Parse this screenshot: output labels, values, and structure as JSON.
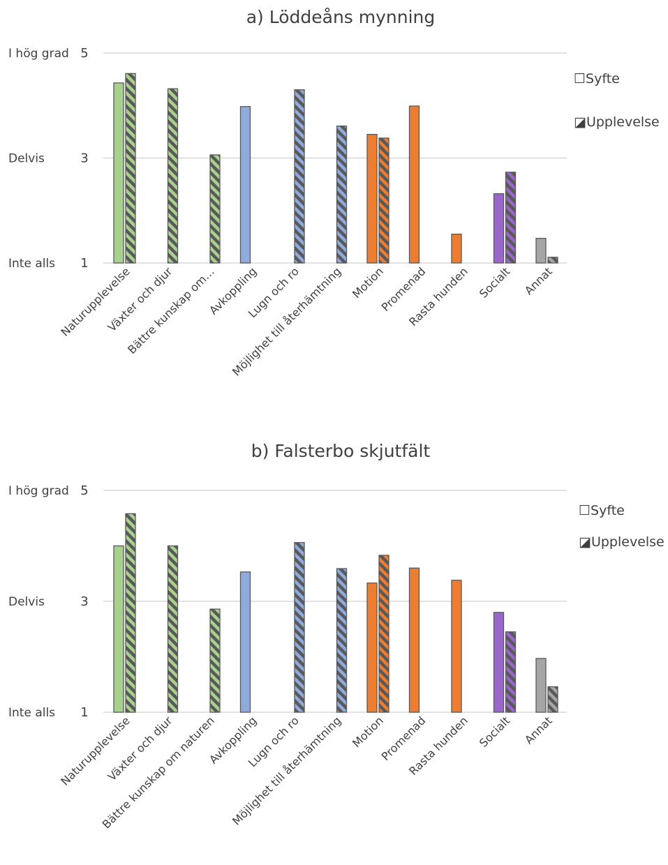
{
  "charts": [
    {
      "title": "a) Löddeåns mynning",
      "categories": [
        "Naturupplevelse",
        "Växter och djur",
        "Bättre kunskap om…",
        "Avkoppling",
        "Lugn och ro",
        "Möjlighet till återhämtning",
        "Motion",
        "Promenad",
        "Rasta hunden",
        "Socialt",
        "Annat"
      ]
    },
    {
      "title": "b) Falsterbo skjutfält",
      "categories": [
        "Naturupplevelse",
        "Växter och djur",
        "Bättre kunskap om naturen",
        "Avkoppling",
        "Lugn och ro",
        "Möjlighet till återhämtning",
        "Motion",
        "Promenad",
        "Rasta hunden",
        "Socialt",
        "Annat"
      ]
    }
  ],
  "y_axis": {
    "ticks": [
      "1",
      "3",
      "5"
    ],
    "labels": {
      "low": "Inte alls",
      "mid": "Delvis",
      "high": "I hög grad"
    }
  },
  "legend": {
    "syfte": "Syfte",
    "upplevelse": "Upplevelse",
    "syfte_symbol": "☐",
    "upplevelse_symbol": "◪"
  },
  "colors": {
    "nature": "#a9d18e",
    "calm": "#8faadc",
    "activity": "#ed7d31",
    "social": "#9966cc",
    "other": "#a5a5a5",
    "hatch": "#595959",
    "grid": "#d0d0d0",
    "text": "#404040"
  },
  "chart_data": [
    {
      "type": "bar",
      "title": "a) Löddeåns mynning",
      "categories": [
        "Naturupplevelse",
        "Växter och djur",
        "Bättre kunskap om…",
        "Avkoppling",
        "Lugn och ro",
        "Möjlighet till återhämtning",
        "Motion",
        "Promenad",
        "Rasta hunden",
        "Socialt",
        "Annat"
      ],
      "category_groups": [
        "nature",
        "nature",
        "nature",
        "calm",
        "calm",
        "calm",
        "activity",
        "activity",
        "activity",
        "social",
        "other"
      ],
      "series": [
        {
          "name": "Syfte",
          "values": [
            4.43,
            null,
            null,
            3.98,
            null,
            null,
            3.45,
            3.99,
            1.55,
            2.32,
            1.47
          ]
        },
        {
          "name": "Upplevelse",
          "values": [
            4.61,
            4.32,
            3.06,
            null,
            4.3,
            3.61,
            3.38,
            null,
            null,
            2.73,
            1.11
          ]
        }
      ],
      "ylim": [
        1,
        5
      ],
      "yticks": [
        1,
        3,
        5
      ],
      "ytick_labels": [
        "Inte alls",
        "Delvis",
        "I hög grad"
      ],
      "grid": true,
      "legend": "right"
    },
    {
      "type": "bar",
      "title": "b) Falsterbo skjutfält",
      "categories": [
        "Naturupplevelse",
        "Växter och djur",
        "Bättre kunskap om naturen",
        "Avkoppling",
        "Lugn och ro",
        "Möjlighet till återhämtning",
        "Motion",
        "Promenad",
        "Rasta hunden",
        "Socialt",
        "Annat"
      ],
      "category_groups": [
        "nature",
        "nature",
        "nature",
        "calm",
        "calm",
        "calm",
        "activity",
        "activity",
        "activity",
        "social",
        "other"
      ],
      "series": [
        {
          "name": "Syfte",
          "values": [
            4.0,
            null,
            null,
            3.53,
            null,
            null,
            3.33,
            3.6,
            3.38,
            2.8,
            1.97
          ]
        },
        {
          "name": "Upplevelse",
          "values": [
            4.58,
            4.0,
            2.86,
            null,
            4.06,
            3.59,
            3.83,
            null,
            null,
            2.45,
            1.46
          ]
        }
      ],
      "ylim": [
        1,
        5
      ],
      "yticks": [
        1,
        3,
        5
      ],
      "ytick_labels": [
        "Inte alls",
        "Delvis",
        "I hög grad"
      ],
      "grid": true,
      "legend": "right"
    }
  ]
}
